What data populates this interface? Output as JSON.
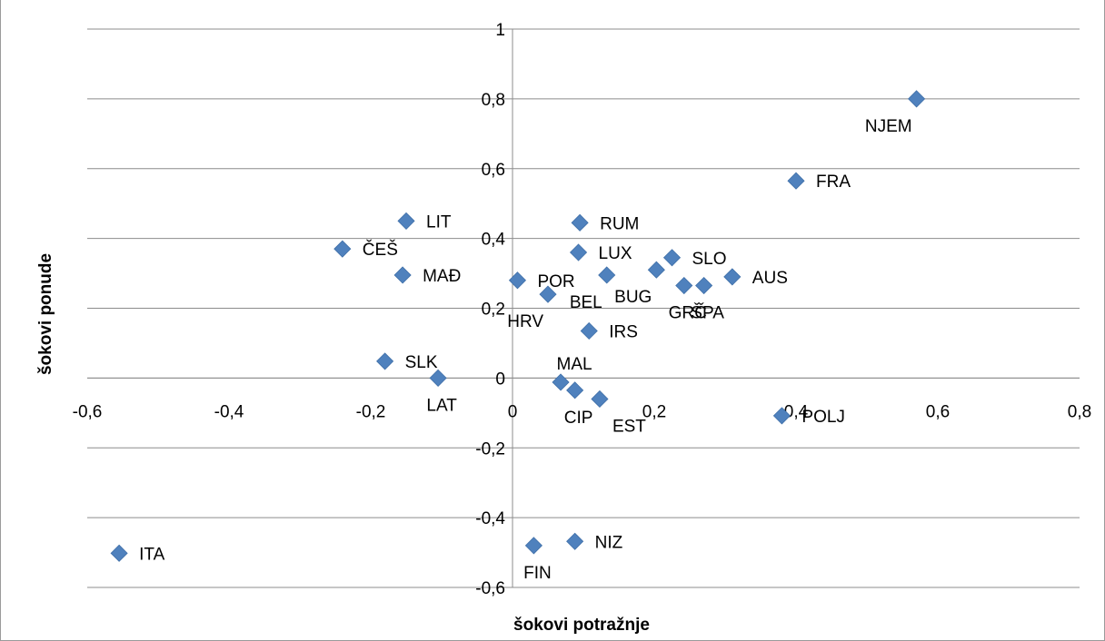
{
  "chart_data": {
    "type": "scatter",
    "title": "",
    "xlabel": "šokovi potražnje",
    "ylabel": "šokovi ponude",
    "xlim": [
      -0.6,
      0.8
    ],
    "ylim": [
      -0.6,
      1
    ],
    "grid": "horizontal",
    "legend": "none",
    "marker_color": "#4f81bd",
    "x_ticks": [
      {
        "value": -0.6,
        "label": "-0,6"
      },
      {
        "value": -0.4,
        "label": "-0,4"
      },
      {
        "value": -0.2,
        "label": "-0,2"
      },
      {
        "value": 0,
        "label": "0"
      },
      {
        "value": 0.2,
        "label": "0,2"
      },
      {
        "value": 0.4,
        "label": "0,4"
      },
      {
        "value": 0.6,
        "label": "0,6"
      },
      {
        "value": 0.8,
        "label": "0,8"
      }
    ],
    "y_ticks": [
      {
        "value": 1,
        "label": "1"
      },
      {
        "value": 0.8,
        "label": "0,8"
      },
      {
        "value": 0.6,
        "label": "0,6"
      },
      {
        "value": 0.4,
        "label": "0,4"
      },
      {
        "value": 0.2,
        "label": "0,2"
      },
      {
        "value": 0,
        "label": "0"
      },
      {
        "value": -0.2,
        "label": "-0,2"
      },
      {
        "value": -0.4,
        "label": "-0,4"
      },
      {
        "value": -0.6,
        "label": "-0,6"
      }
    ],
    "points": [
      {
        "label": "NJEM",
        "x": 0.57,
        "y": 0.8,
        "label_pos": "below-left"
      },
      {
        "label": "FRA",
        "x": 0.4,
        "y": 0.565,
        "label_pos": "right"
      },
      {
        "label": "LIT",
        "x": -0.15,
        "y": 0.45,
        "label_pos": "right"
      },
      {
        "label": "ČEŠ",
        "x": -0.24,
        "y": 0.37,
        "label_pos": "right"
      },
      {
        "label": "MAĐ",
        "x": -0.155,
        "y": 0.295,
        "label_pos": "right"
      },
      {
        "label": "RUM",
        "x": 0.095,
        "y": 0.445,
        "label_pos": "right"
      },
      {
        "label": "LUX",
        "x": 0.093,
        "y": 0.36,
        "label_pos": "right"
      },
      {
        "label": "SLO",
        "x": 0.225,
        "y": 0.345,
        "label_pos": "right"
      },
      {
        "label": "POR",
        "x": 0.007,
        "y": 0.28,
        "label_pos": "right"
      },
      {
        "label": "BEL",
        "x": 0.133,
        "y": 0.295,
        "label_pos": "below-left"
      },
      {
        "label": "BUG",
        "x": 0.203,
        "y": 0.31,
        "label_pos": "below-left"
      },
      {
        "label": "AUS",
        "x": 0.31,
        "y": 0.29,
        "label_pos": "right"
      },
      {
        "label": "GRČ",
        "x": 0.242,
        "y": 0.265,
        "label_pos": "below"
      },
      {
        "label": "ŠPA",
        "x": 0.27,
        "y": 0.265,
        "label_pos": "below"
      },
      {
        "label": "HRV",
        "x": 0.05,
        "y": 0.24,
        "label_pos": "below-left"
      },
      {
        "label": "IRS",
        "x": 0.108,
        "y": 0.135,
        "label_pos": "right"
      },
      {
        "label": "SLK",
        "x": -0.18,
        "y": 0.048,
        "label_pos": "right"
      },
      {
        "label": "LAT",
        "x": -0.105,
        "y": 0.0,
        "label_pos": "below"
      },
      {
        "label": "MAL",
        "x": 0.068,
        "y": -0.012,
        "label_pos": "above"
      },
      {
        "label": "CIP",
        "x": 0.088,
        "y": -0.035,
        "label_pos": "below"
      },
      {
        "label": "EST",
        "x": 0.123,
        "y": -0.06,
        "label_pos": "below-right"
      },
      {
        "label": "POLJ",
        "x": 0.38,
        "y": -0.108,
        "label_pos": "right"
      },
      {
        "label": "ITA",
        "x": -0.555,
        "y": -0.502,
        "label_pos": "right"
      },
      {
        "label": "FIN",
        "x": 0.03,
        "y": -0.48,
        "label_pos": "below"
      },
      {
        "label": "NIZ",
        "x": 0.088,
        "y": -0.468,
        "label_pos": "right"
      }
    ]
  }
}
